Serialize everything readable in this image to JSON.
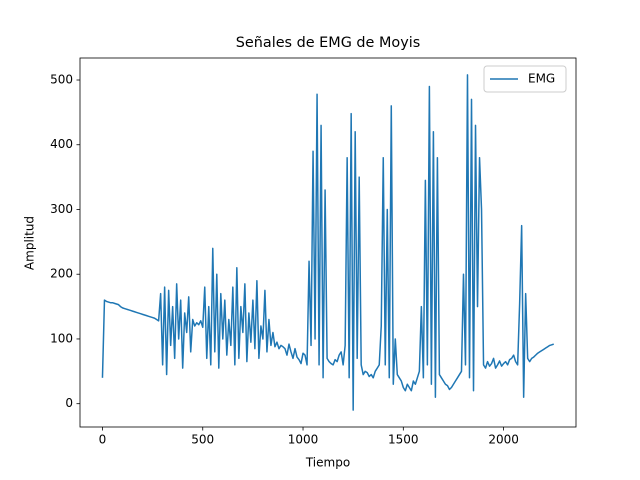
{
  "chart_data": {
    "type": "line",
    "title": "Señales de EMG de Moyis",
    "x_label": "Tiempo",
    "y_label": "Amplitud",
    "x": [
      0,
      10,
      20,
      30,
      40,
      50,
      60,
      70,
      80,
      90,
      100,
      110,
      120,
      130,
      140,
      150,
      160,
      170,
      180,
      190,
      200,
      210,
      220,
      230,
      240,
      250,
      260,
      270,
      280,
      290,
      300,
      310,
      320,
      330,
      340,
      350,
      360,
      370,
      380,
      390,
      400,
      410,
      420,
      430,
      440,
      450,
      460,
      470,
      480,
      490,
      500,
      510,
      520,
      530,
      540,
      550,
      560,
      570,
      580,
      590,
      600,
      610,
      620,
      630,
      640,
      650,
      660,
      670,
      680,
      690,
      700,
      710,
      720,
      730,
      740,
      750,
      760,
      770,
      780,
      790,
      800,
      810,
      820,
      830,
      840,
      850,
      860,
      870,
      880,
      890,
      900,
      910,
      920,
      930,
      940,
      950,
      960,
      970,
      980,
      990,
      1000,
      1010,
      1020,
      1030,
      1040,
      1050,
      1060,
      1070,
      1080,
      1090,
      1100,
      1110,
      1120,
      1130,
      1140,
      1150,
      1160,
      1170,
      1180,
      1190,
      1200,
      1210,
      1220,
      1230,
      1240,
      1250,
      1260,
      1270,
      1280,
      1290,
      1300,
      1310,
      1320,
      1330,
      1340,
      1350,
      1360,
      1370,
      1380,
      1390,
      1400,
      1410,
      1420,
      1430,
      1440,
      1450,
      1460,
      1470,
      1480,
      1490,
      1500,
      1510,
      1520,
      1530,
      1540,
      1550,
      1560,
      1570,
      1580,
      1590,
      1600,
      1610,
      1620,
      1630,
      1640,
      1650,
      1660,
      1670,
      1680,
      1690,
      1700,
      1710,
      1720,
      1730,
      1740,
      1750,
      1760,
      1770,
      1780,
      1790,
      1800,
      1810,
      1820,
      1830,
      1840,
      1850,
      1860,
      1870,
      1880,
      1890,
      1900,
      1910,
      1920,
      1930,
      1940,
      1950,
      1960,
      1970,
      1980,
      1990,
      2000,
      2010,
      2020,
      2030,
      2040,
      2050,
      2060,
      2070,
      2080,
      2090,
      2100,
      2110,
      2120,
      2130,
      2140,
      2150,
      2160,
      2170,
      2180,
      2190,
      2200,
      2210,
      2220,
      2230,
      2240,
      2250
    ],
    "series": [
      {
        "name": "EMG",
        "color": "#1f77b4",
        "values": [
          40,
          160,
          158,
          157,
          156,
          156,
          155,
          154,
          153,
          150,
          148,
          147,
          146,
          145,
          144,
          143,
          142,
          141,
          140,
          139,
          138,
          137,
          136,
          135,
          134,
          133,
          132,
          130,
          128,
          170,
          60,
          180,
          45,
          175,
          90,
          150,
          70,
          185,
          100,
          160,
          55,
          140,
          110,
          165,
          80,
          130,
          120,
          125,
          122,
          128,
          118,
          180,
          70,
          150,
          60,
          240,
          80,
          200,
          55,
          170,
          100,
          160,
          75,
          130,
          90,
          180,
          60,
          210,
          70,
          150,
          110,
          185,
          65,
          140,
          95,
          160,
          85,
          190,
          70,
          120,
          100,
          175,
          80,
          130,
          90,
          110,
          88,
          95,
          85,
          90,
          88,
          85,
          75,
          92,
          80,
          70,
          85,
          72,
          68,
          62,
          78,
          75,
          60,
          220,
          90,
          390,
          100,
          478,
          60,
          430,
          40,
          330,
          70,
          65,
          62,
          60,
          68,
          65,
          75,
          80,
          60,
          90,
          380,
          40,
          448,
          -10,
          420,
          70,
          350,
          60,
          45,
          50,
          48,
          42,
          45,
          40,
          50,
          55,
          60,
          120,
          380,
          60,
          300,
          40,
          460,
          30,
          100,
          45,
          40,
          35,
          25,
          20,
          30,
          25,
          20,
          35,
          30,
          40,
          50,
          150,
          40,
          345,
          60,
          490,
          30,
          420,
          10,
          380,
          45,
          40,
          35,
          30,
          28,
          22,
          25,
          30,
          35,
          40,
          45,
          50,
          200,
          60,
          508,
          40,
          470,
          20,
          430,
          150,
          380,
          300,
          60,
          55,
          65,
          58,
          62,
          70,
          55,
          60,
          66,
          58,
          62,
          65,
          60,
          68,
          70,
          75,
          65,
          60,
          155,
          275,
          10,
          170,
          70,
          65,
          70,
          72,
          75,
          78,
          80,
          82,
          84,
          86,
          88,
          90,
          91,
          92
        ]
      }
    ],
    "xlim": [
      -112,
      2361
    ],
    "ylim": [
      -36,
      534
    ],
    "xticks": [
      0,
      500,
      1000,
      1500,
      2000
    ],
    "yticks": [
      0,
      100,
      200,
      300,
      400,
      500
    ],
    "grid": false,
    "legend": "upper right"
  }
}
